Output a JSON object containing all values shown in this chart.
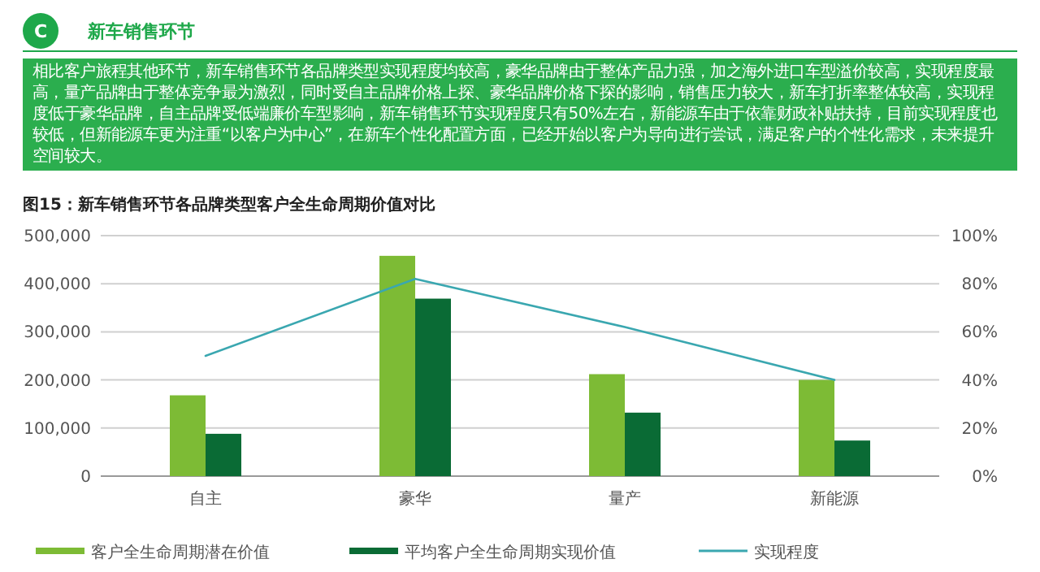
{
  "chart_data": {
    "type": "bar",
    "title": "图15：新车销售环节各品牌类型客户全生命周期价值对比",
    "annotations": [
      "C",
      "新车销售环节",
      "相比客户旅程其他环节，新车销售环节各品牌类型实现程度均较高，豪华品牌由于整体产品力强，加之海外进口车型溢价较高，实现程度最高，量产品牌由于整体竞争最为激烈，同时受自主品牌价格上探、豪华品牌价格下探的影响，销售压力较大，新车打折率整体较高，实现程度低于豪华品牌，自主品牌受低端廉价车型影响，新车销售环节实现程度只有50%左右，新能源车由于依靠财政补贴扶持，目前实现程度也较低，但新能源车更为注重“以客户为中心”，在新车个性化配置方面，已经开始以客户为导向进行尝试，满足客户的个性化需求，未来提升空间较大。"
    ],
    "categories": [
      "自主",
      "豪华",
      "量产",
      "新能源"
    ],
    "series": [
      {
        "name": "客户全生命周期潜在价值",
        "color": "#7dbb35",
        "values": [
          168000,
          458000,
          212000,
          200000
        ]
      },
      {
        "name": "平均客户全生命周期实现价值",
        "color": "#0a6b35",
        "values": [
          88000,
          369000,
          132000,
          74000
        ]
      },
      {
        "name": "实现程度",
        "type": "line",
        "axis": "y2",
        "color": "#3aa7b0",
        "values": [
          50,
          82,
          62,
          40
        ]
      }
    ],
    "ylim": [
      0,
      500000
    ],
    "yticks": [
      0,
      {
        "value": 100000,
        "label": "100,000"
      },
      {
        "value": 200000,
        "label": "200,000"
      },
      {
        "value": 300000,
        "label": "300,000"
      },
      {
        "value": 400000,
        "label": "400,000"
      },
      {
        "value": 500000,
        "label": "500,000"
      }
    ],
    "y2lim": [
      0,
      100
    ],
    "y2ticks": [
      {
        "value": 0,
        "label": "0%"
      },
      {
        "value": 20,
        "label": "20%"
      },
      {
        "value": 40,
        "label": "40%"
      },
      {
        "value": 60,
        "label": "60%"
      },
      {
        "value": 80,
        "label": "80%"
      },
      {
        "value": 100,
        "label": "100%"
      }
    ],
    "grid": "y",
    "legend": "bottom"
  }
}
